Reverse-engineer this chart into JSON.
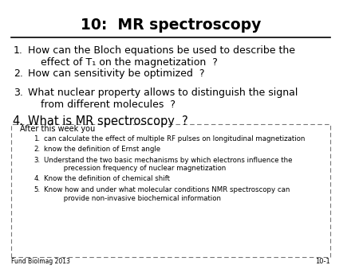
{
  "title": "10:  MR spectroscopy",
  "slide_bg": "#ffffff",
  "main_questions": [
    "How can the Bloch equations be used to describe the\n    effect of T₁ on the magnetization  ?",
    "How can sensitivity be optimized  ?",
    "What nuclear property allows to distinguish the signal\n    from different molecules  ?",
    "What is MR spectroscopy  ?"
  ],
  "box_header": "After this week you",
  "box_items": [
    "can calculate the effect of multiple RF pulses on longitudinal magnetization",
    "know the definition of Ernst angle",
    "Understand the two basic mechanisms by which electrons influence the\n         precession frequency of nuclear magnetization",
    "Know the definition of chemical shift",
    "Know how and under what molecular conditions NMR spectroscopy can\n         provide non-invasive biochemical information"
  ],
  "footer_left": "Fund BioImag 2013",
  "footer_right": "10-1"
}
